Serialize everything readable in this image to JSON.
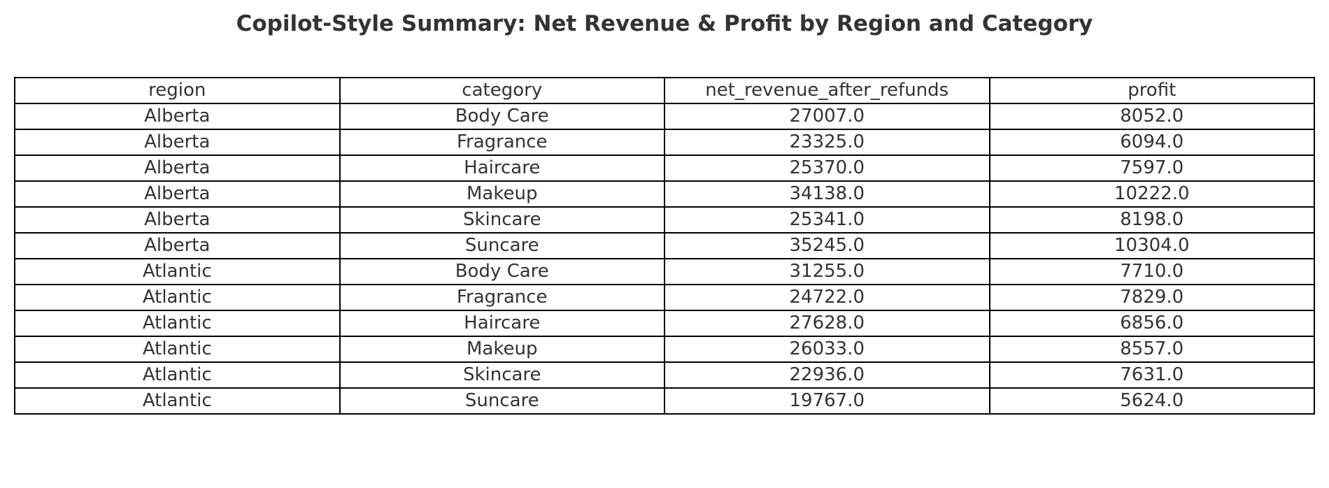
{
  "chart_data": {
    "type": "table",
    "title": "Copilot-Style Summary: Net Revenue & Profit by Region and Category",
    "columns": [
      "region",
      "category",
      "net_revenue_after_refunds",
      "profit"
    ],
    "rows": [
      [
        "Alberta",
        "Body Care",
        "27007.0",
        "8052.0"
      ],
      [
        "Alberta",
        "Fragrance",
        "23325.0",
        "6094.0"
      ],
      [
        "Alberta",
        "Haircare",
        "25370.0",
        "7597.0"
      ],
      [
        "Alberta",
        "Makeup",
        "34138.0",
        "10222.0"
      ],
      [
        "Alberta",
        "Skincare",
        "25341.0",
        "8198.0"
      ],
      [
        "Alberta",
        "Suncare",
        "35245.0",
        "10304.0"
      ],
      [
        "Atlantic",
        "Body Care",
        "31255.0",
        "7710.0"
      ],
      [
        "Atlantic",
        "Fragrance",
        "24722.0",
        "7829.0"
      ],
      [
        "Atlantic",
        "Haircare",
        "27628.0",
        "6856.0"
      ],
      [
        "Atlantic",
        "Makeup",
        "26033.0",
        "8557.0"
      ],
      [
        "Atlantic",
        "Skincare",
        "22936.0",
        "7631.0"
      ],
      [
        "Atlantic",
        "Suncare",
        "19767.0",
        "5624.0"
      ]
    ]
  }
}
